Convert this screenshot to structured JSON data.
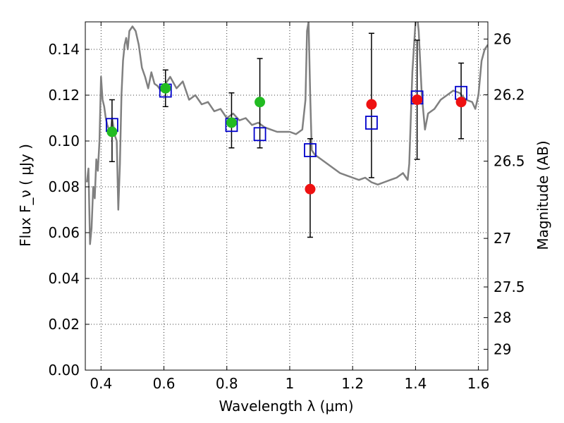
{
  "chart_data": {
    "type": "scatter",
    "xlabel": "Wavelength  λ (μm)",
    "ylabel": "Flux  F_ν  ( μJy )",
    "y2label": "Magnitude (AB)",
    "xlim": [
      0.35,
      1.63
    ],
    "ylim": [
      0.0,
      0.152
    ],
    "grid": true,
    "x_ticks": [
      0.4,
      0.6,
      0.8,
      1.0,
      1.2,
      1.4,
      1.6
    ],
    "x_tick_labels": [
      "0.4",
      "0.6",
      "0.8",
      "1",
      "1.2",
      "1.4",
      "1.6"
    ],
    "y_ticks": [
      0.0,
      0.02,
      0.04,
      0.06,
      0.08,
      0.1,
      0.12,
      0.14
    ],
    "y_tick_labels": [
      "0.00",
      "0.02",
      "0.04",
      "0.06",
      "0.08",
      "0.10",
      "0.12",
      "0.14"
    ],
    "y2_ticks": [
      {
        "label": "26",
        "flux": 0.1445
      },
      {
        "label": "26.2",
        "flux": 0.1202
      },
      {
        "label": "26.5",
        "flux": 0.0912
      },
      {
        "label": "27",
        "flux": 0.0575
      },
      {
        "label": "27.5",
        "flux": 0.0363
      },
      {
        "label": "28",
        "flux": 0.0229
      },
      {
        "label": "29",
        "flux": 0.0091
      }
    ],
    "colors": {
      "sed": "#808080",
      "model_box": "#0000cc",
      "hst_point": "#22bb22",
      "ir_point": "#ee1111",
      "errorbar": "#000000"
    },
    "series": [
      {
        "role": "sed",
        "x": [
          0.355,
          0.36,
          0.365,
          0.37,
          0.375,
          0.38,
          0.385,
          0.39,
          0.395,
          0.4,
          0.405,
          0.41,
          0.415,
          0.42,
          0.425,
          0.43,
          0.435,
          0.44,
          0.445,
          0.45,
          0.455,
          0.46,
          0.465,
          0.47,
          0.475,
          0.48,
          0.485,
          0.49,
          0.5,
          0.51,
          0.52,
          0.53,
          0.54,
          0.55,
          0.56,
          0.57,
          0.58,
          0.59,
          0.6,
          0.62,
          0.64,
          0.66,
          0.68,
          0.7,
          0.72,
          0.74,
          0.76,
          0.78,
          0.8,
          0.82,
          0.84,
          0.86,
          0.88,
          0.9,
          0.92,
          0.94,
          0.96,
          0.98,
          1.0,
          1.02,
          1.04,
          1.05,
          1.055,
          1.06,
          1.065,
          1.07,
          1.08,
          1.1,
          1.12,
          1.14,
          1.16,
          1.18,
          1.2,
          1.22,
          1.24,
          1.26,
          1.28,
          1.3,
          1.32,
          1.34,
          1.36,
          1.37,
          1.375,
          1.38,
          1.39,
          1.4,
          1.405,
          1.41,
          1.42,
          1.43,
          1.44,
          1.46,
          1.48,
          1.5,
          1.52,
          1.54,
          1.56,
          1.58,
          1.59,
          1.6,
          1.61,
          1.62,
          1.63
        ],
        "y": [
          0.082,
          0.088,
          0.055,
          0.062,
          0.08,
          0.075,
          0.092,
          0.087,
          0.1,
          0.128,
          0.118,
          0.115,
          0.11,
          0.107,
          0.105,
          0.103,
          0.11,
          0.106,
          0.102,
          0.1,
          0.07,
          0.09,
          0.12,
          0.135,
          0.142,
          0.145,
          0.14,
          0.148,
          0.15,
          0.148,
          0.142,
          0.132,
          0.128,
          0.123,
          0.13,
          0.125,
          0.124,
          0.122,
          0.124,
          0.128,
          0.123,
          0.126,
          0.118,
          0.12,
          0.116,
          0.117,
          0.113,
          0.114,
          0.11,
          0.112,
          0.109,
          0.11,
          0.107,
          0.108,
          0.106,
          0.105,
          0.104,
          0.104,
          0.104,
          0.103,
          0.105,
          0.118,
          0.148,
          0.152,
          0.12,
          0.096,
          0.094,
          0.092,
          0.09,
          0.088,
          0.086,
          0.085,
          0.084,
          0.083,
          0.084,
          0.082,
          0.081,
          0.082,
          0.083,
          0.084,
          0.086,
          0.084,
          0.083,
          0.09,
          0.13,
          0.152,
          0.155,
          0.148,
          0.12,
          0.105,
          0.112,
          0.114,
          0.118,
          0.12,
          0.122,
          0.121,
          0.118,
          0.117,
          0.114,
          0.12,
          0.135,
          0.14,
          0.142
        ]
      },
      {
        "role": "model_box",
        "x": [
          0.435,
          0.605,
          0.815,
          0.905,
          1.065,
          1.26,
          1.405,
          1.545
        ],
        "y": [
          0.107,
          0.122,
          0.107,
          0.103,
          0.096,
          0.108,
          0.119,
          0.121
        ]
      },
      {
        "role": "hst_point",
        "x": [
          0.435,
          0.605,
          0.815,
          0.905
        ],
        "y": [
          0.104,
          0.123,
          0.108,
          0.117
        ]
      },
      {
        "role": "ir_point",
        "x": [
          1.065,
          1.26,
          1.405,
          1.545
        ],
        "y": [
          0.079,
          0.116,
          0.118,
          0.117
        ]
      },
      {
        "role": "errorbar",
        "x": [
          0.435,
          0.605,
          0.815,
          0.905,
          1.065,
          1.26,
          1.405,
          1.545
        ],
        "low": [
          0.091,
          0.115,
          0.097,
          0.097,
          0.058,
          0.084,
          0.092,
          0.101
        ],
        "high": [
          0.118,
          0.131,
          0.121,
          0.136,
          0.101,
          0.147,
          0.144,
          0.134
        ]
      }
    ]
  }
}
